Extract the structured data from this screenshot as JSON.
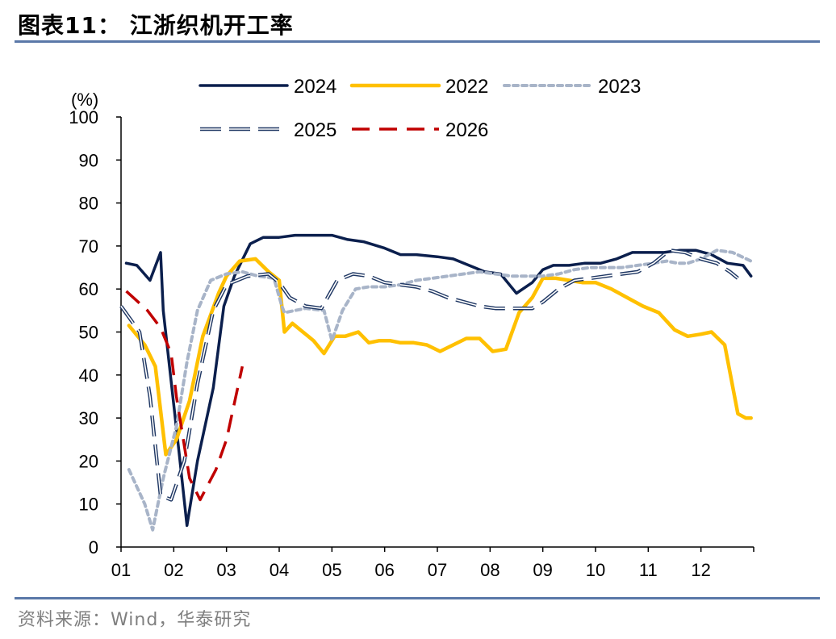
{
  "header": {
    "title": "图表11：  江浙织机开工率"
  },
  "footer": {
    "source": "资料来源：Wind，华泰研究"
  },
  "chart_data": {
    "type": "line",
    "title": "江浙织机开工率",
    "ylabel": "(%)",
    "xlabel": "",
    "ylim": [
      0,
      100
    ],
    "yticks": [
      0,
      10,
      20,
      30,
      40,
      50,
      60,
      70,
      80,
      90,
      100
    ],
    "xlim": [
      0,
      12
    ],
    "xtick_labels": [
      "01",
      "02",
      "03",
      "04",
      "05",
      "06",
      "07",
      "08",
      "09",
      "10",
      "11",
      "12"
    ],
    "legend_position": "top",
    "series": [
      {
        "name": "2024",
        "color": "#0b1f4d",
        "style": "solid",
        "x": [
          0.1,
          0.3,
          0.55,
          0.75,
          0.8,
          1.1,
          1.25,
          1.45,
          1.75,
          1.95,
          2.15,
          2.45,
          2.7,
          3.0,
          3.3,
          3.6,
          4.0,
          4.3,
          4.6,
          5.0,
          5.3,
          5.6,
          6.0,
          6.3,
          6.6,
          6.9,
          7.2,
          7.5,
          7.8,
          8.0,
          8.2,
          8.5,
          8.8,
          9.1,
          9.4,
          9.7,
          10.0,
          10.3,
          10.6,
          10.9,
          11.2,
          11.5,
          11.8,
          11.95
        ],
        "y": [
          66,
          65.5,
          62,
          68.5,
          55,
          22,
          5,
          20,
          37,
          56,
          63,
          70.5,
          72,
          72,
          72.5,
          72.5,
          72.5,
          71.5,
          71,
          69.5,
          68,
          68,
          67.5,
          67,
          65.5,
          64,
          63.5,
          59,
          61.5,
          64.5,
          65.5,
          65.5,
          66,
          66,
          67,
          68.5,
          68.5,
          68.5,
          69,
          69,
          68,
          66,
          65.5,
          63
        ]
      },
      {
        "name": "2022",
        "color": "#ffc000",
        "style": "solid",
        "x": [
          0.15,
          0.45,
          0.65,
          0.85,
          1.05,
          1.3,
          1.55,
          1.85,
          2.0,
          2.25,
          2.55,
          2.8,
          3.0,
          3.1,
          3.25,
          3.45,
          3.65,
          3.85,
          4.05,
          4.25,
          4.5,
          4.7,
          4.9,
          5.1,
          5.3,
          5.55,
          5.8,
          6.05,
          6.3,
          6.55,
          6.8,
          7.05,
          7.3,
          7.55,
          7.8,
          8.0,
          8.25,
          8.5,
          8.75,
          9.0,
          9.3,
          9.6,
          9.9,
          10.2,
          10.5,
          10.75,
          11.0,
          11.2,
          11.45,
          11.7,
          11.85,
          11.95
        ],
        "y": [
          51.5,
          47,
          42,
          21.5,
          25,
          34,
          49,
          59,
          63,
          66.5,
          67,
          64,
          62,
          50,
          52,
          50,
          48,
          45,
          49,
          49,
          50,
          47.5,
          48,
          48,
          47.5,
          47.5,
          47,
          45.5,
          47,
          48.5,
          48.5,
          45.5,
          46,
          54.5,
          58,
          62.5,
          62.5,
          62,
          61.5,
          61.5,
          60,
          58,
          56,
          54.5,
          50.5,
          49,
          49.5,
          50,
          47,
          31,
          30,
          30
        ]
      },
      {
        "name": "2023",
        "color": "#a8b4c8",
        "style": "dotted",
        "x": [
          0.15,
          0.45,
          0.6,
          0.8,
          1.05,
          1.25,
          1.45,
          1.7,
          2.0,
          2.3,
          2.6,
          2.9,
          3.05,
          3.1,
          3.5,
          3.85,
          4.0,
          4.2,
          4.45,
          4.7,
          5.0,
          5.3,
          5.6,
          5.9,
          6.2,
          6.5,
          6.8,
          7.1,
          7.4,
          7.7,
          8.0,
          8.3,
          8.6,
          8.9,
          9.2,
          9.5,
          9.8,
          10.1,
          10.35,
          10.55,
          10.75,
          11.0,
          11.3,
          11.6,
          11.95
        ],
        "y": [
          18,
          10,
          4,
          16,
          28,
          43,
          55,
          62,
          63.5,
          64,
          63,
          62.5,
          56,
          54.5,
          55.5,
          55,
          48,
          55,
          60,
          60.5,
          60.5,
          61,
          62,
          62.5,
          63,
          63.5,
          64,
          63.5,
          63,
          63,
          63,
          63.5,
          64.5,
          65,
          65,
          65,
          65.5,
          66,
          66.5,
          66,
          66,
          67,
          69,
          68.5,
          66.5
        ]
      },
      {
        "name": "2025",
        "color": "#203864",
        "style": "dashed",
        "x": [
          0.0,
          0.35,
          0.55,
          0.75,
          0.95,
          1.2,
          1.45,
          1.75,
          2.0,
          2.4,
          2.8,
          3.0,
          3.2,
          3.5,
          3.8,
          4.1,
          4.4,
          4.7,
          5.0,
          5.3,
          5.6,
          5.9,
          6.2,
          6.5,
          6.8,
          7.1,
          7.4,
          7.8,
          8.0,
          8.3,
          8.6,
          8.9,
          9.2,
          9.5,
          9.8,
          10.1,
          10.4,
          10.7,
          11.0,
          11.3,
          11.55,
          11.7
        ],
        "y": [
          56,
          50,
          35,
          12,
          11,
          20,
          38,
          55,
          61,
          63,
          63.5,
          61.5,
          58,
          56,
          55.5,
          62,
          63.5,
          63,
          61.5,
          61,
          60.5,
          59.5,
          58,
          57,
          56,
          55.5,
          55.5,
          55.5,
          57,
          60,
          62,
          62.5,
          63,
          63.5,
          64,
          66,
          69,
          68.5,
          67,
          66,
          64,
          62.5
        ]
      },
      {
        "name": "2026",
        "color": "#c00000",
        "style": "dashed",
        "x": [
          0.1,
          0.5,
          0.75,
          0.95,
          1.05,
          1.3,
          1.5,
          1.8,
          2.0,
          2.3
        ],
        "y": [
          59.5,
          55,
          51,
          45,
          35,
          16,
          11,
          18,
          25,
          42
        ]
      }
    ]
  }
}
